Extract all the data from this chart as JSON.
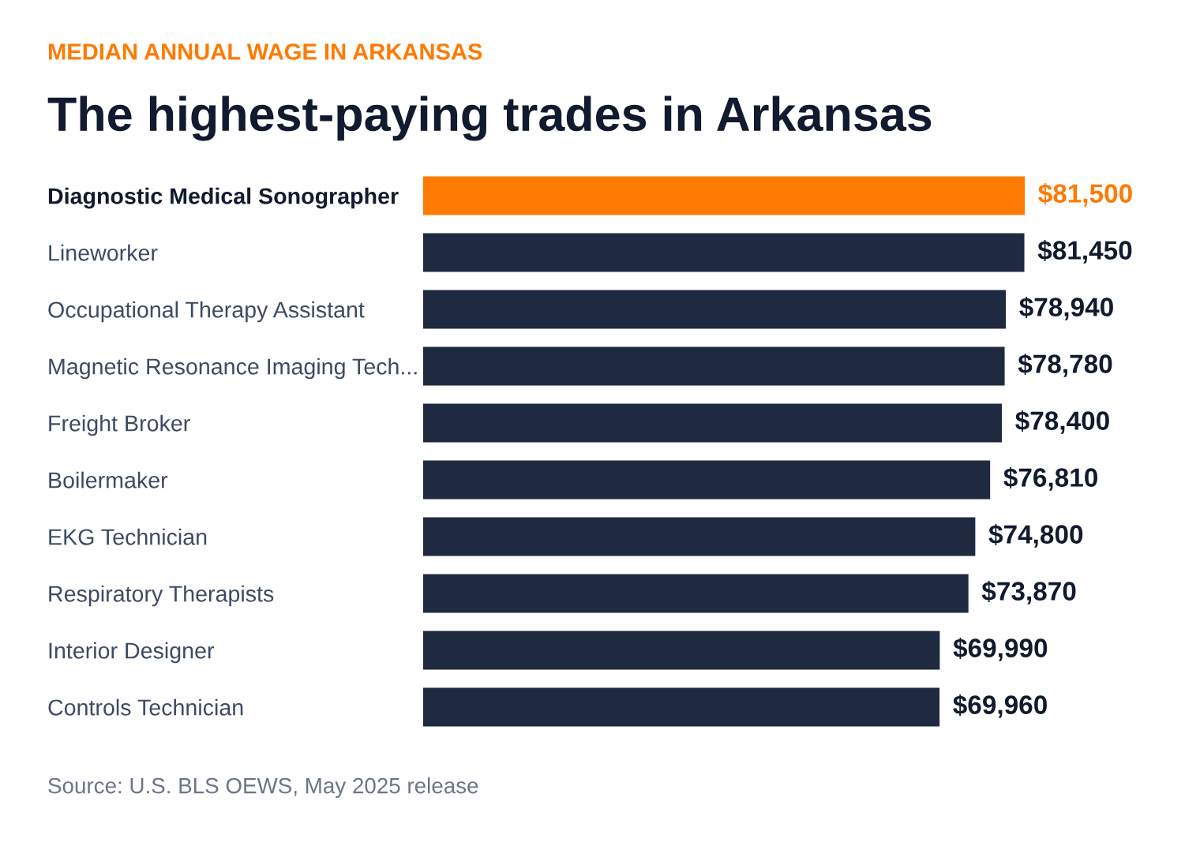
{
  "chart_data": {
    "type": "bar",
    "orientation": "horizontal",
    "subtitle": "MEDIAN ANNUAL WAGE IN ARKANSAS",
    "title": "The highest-paying trades in Arkansas",
    "categories": [
      "Diagnostic Medical Sonographer",
      "Lineworker",
      "Occupational Therapy Assistant",
      "Magnetic Resonance Imaging Tech...",
      "Freight Broker",
      "Boilermaker",
      "EKG Technician",
      "Respiratory Therapists",
      "Interior Designer",
      "Controls Technician"
    ],
    "values": [
      81500,
      81450,
      78940,
      78780,
      78400,
      76810,
      74800,
      73870,
      69990,
      69960
    ],
    "colors": [
      "#ff7a00",
      "#1f2a40",
      "#1f2a40",
      "#1f2a40",
      "#1f2a40",
      "#1f2a40",
      "#1f2a40",
      "#1f2a40",
      "#1f2a40",
      "#1f2a40"
    ],
    "value_labels": [
      "$81,500",
      "$81,450",
      "$78,940",
      "$78,780",
      "$78,400",
      "$76,810",
      "$74,800",
      "$73,870",
      "$69,990",
      "$69,960"
    ],
    "annotations": [
      "Source: U.S. BLS OEWS, May 2025 release"
    ],
    "grid": false,
    "legend": false
  }
}
